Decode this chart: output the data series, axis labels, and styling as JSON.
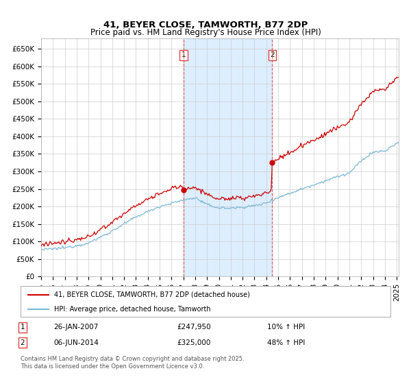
{
  "title": "41, BEYER CLOSE, TAMWORTH, B77 2DP",
  "subtitle": "Price paid vs. HM Land Registry's House Price Index (HPI)",
  "background_color": "#ffffff",
  "plot_bg_color": "#ffffff",
  "shaded_region_color": "#ddeeff",
  "red_line_color": "#cc0000",
  "blue_line_color": "#7ab8d4",
  "grid_color": "#cccccc",
  "vline_color": "#dd4444",
  "legend_label_red": "41, BEYER CLOSE, TAMWORTH, B77 2DP (detached house)",
  "legend_label_blue": "HPI: Average price, detached house, Tamworth",
  "annotation1_date": "26-JAN-2007",
  "annotation1_price": "£247,950",
  "annotation1_hpi": "10% ↑ HPI",
  "annotation2_date": "06-JUN-2014",
  "annotation2_price": "£325,000",
  "annotation2_hpi": "48% ↑ HPI",
  "footer": "Contains HM Land Registry data © Crown copyright and database right 2025.\nThis data is licensed under the Open Government Licence v3.0.",
  "ylim": [
    0,
    680000
  ],
  "yticks": [
    0,
    50000,
    100000,
    150000,
    200000,
    250000,
    300000,
    350000,
    400000,
    450000,
    500000,
    550000,
    600000,
    650000
  ],
  "start_year": 1995,
  "end_year": 2025,
  "purchase1_month": 144,
  "purchase1_price": 247950,
  "purchase2_month": 234,
  "purchase2_price": 325000
}
